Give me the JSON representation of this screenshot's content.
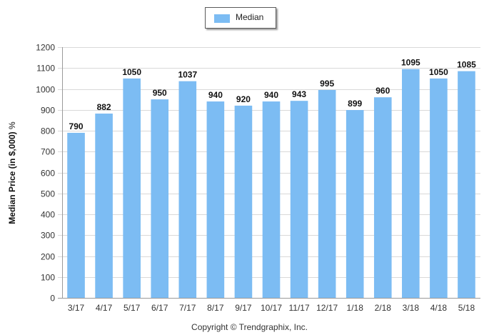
{
  "legend": {
    "label": "Median",
    "color": "#7cbcf3"
  },
  "copyright": "Copyright © Trendgraphix, Inc.",
  "chart_data": {
    "type": "bar",
    "categories": [
      "3/17",
      "4/17",
      "5/17",
      "6/17",
      "7/17",
      "8/17",
      "9/17",
      "10/17",
      "11/17",
      "12/17",
      "1/18",
      "2/18",
      "3/18",
      "4/18",
      "5/18"
    ],
    "series": [
      {
        "name": "Median",
        "values": [
          790,
          882,
          1050,
          950,
          1037,
          940,
          920,
          940,
          943,
          995,
          899,
          960,
          1095,
          1050,
          1085
        ]
      }
    ],
    "ylabel": "Median Price (in $,000)",
    "ylabel_unit": "%",
    "ylim": [
      0,
      1200
    ],
    "yticks": [
      0,
      100,
      200,
      300,
      400,
      500,
      600,
      700,
      800,
      900,
      1000,
      1100,
      1200
    ],
    "grid": true,
    "legend_position": "top-center",
    "bar_color": "#7cbcf3"
  }
}
